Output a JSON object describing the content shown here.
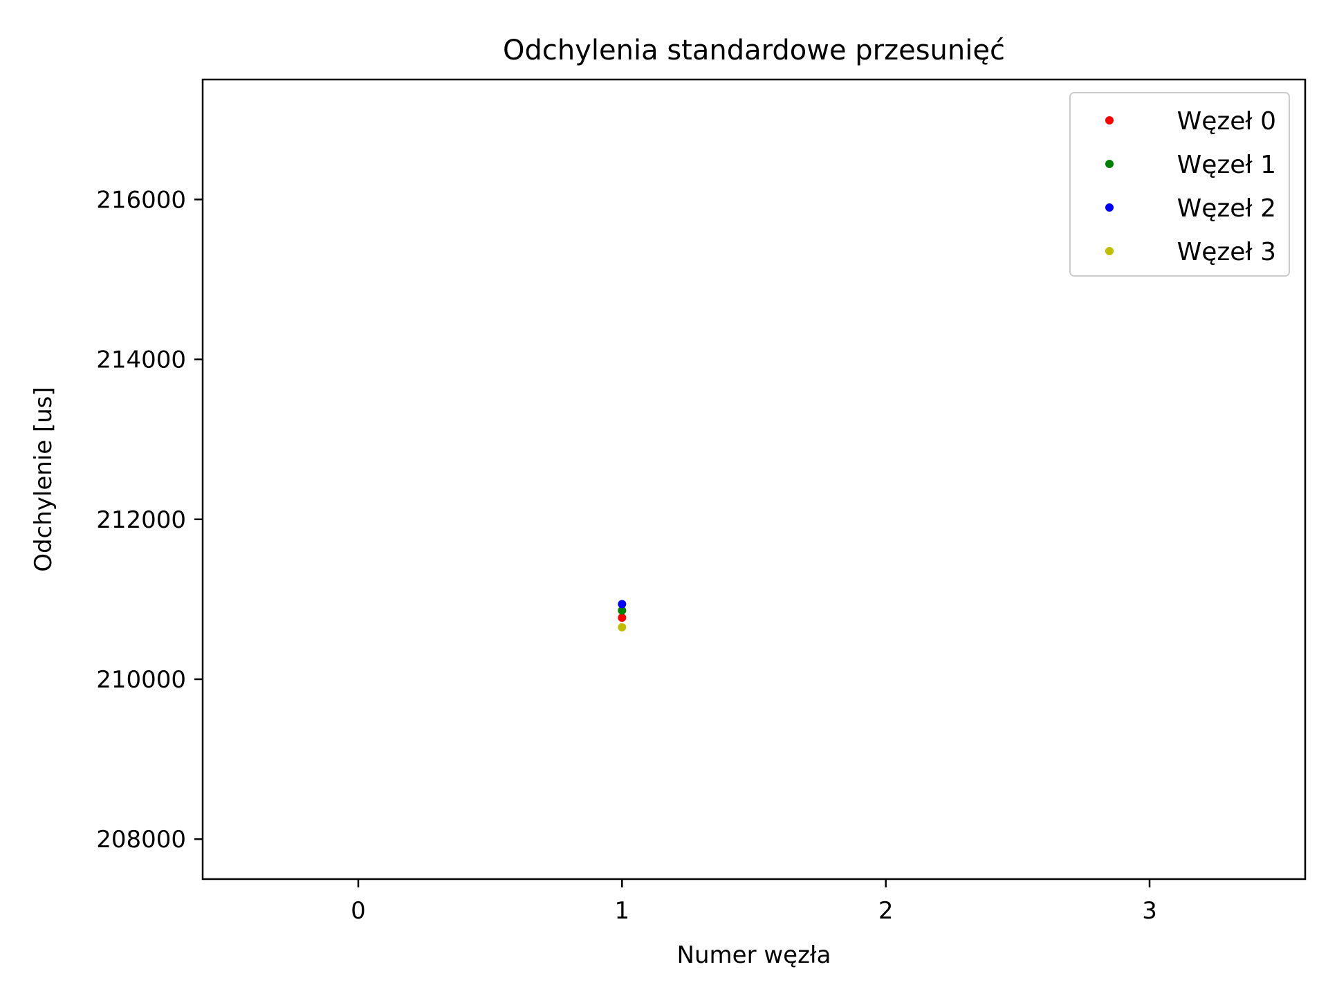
{
  "chart_data": {
    "type": "scatter",
    "title": "Odchylenia standardowe przesunięć",
    "xlabel": "Numer węzła",
    "ylabel": "Odchylenie [us]",
    "xlim": [
      -0.59,
      3.59
    ],
    "ylim": [
      207500,
      217500
    ],
    "xticks": [
      {
        "value": 0,
        "label": "0"
      },
      {
        "value": 1,
        "label": "1"
      },
      {
        "value": 2,
        "label": "2"
      },
      {
        "value": 3,
        "label": "3"
      }
    ],
    "yticks": [
      {
        "value": 208000,
        "label": "208000"
      },
      {
        "value": 210000,
        "label": "210000"
      },
      {
        "value": 212000,
        "label": "212000"
      },
      {
        "value": 214000,
        "label": "214000"
      },
      {
        "value": 216000,
        "label": "216000"
      }
    ],
    "grid": false,
    "legend_position": "top-right",
    "series": [
      {
        "name": "Węzeł 0",
        "color": "#ff0000",
        "points": [
          {
            "x": 1,
            "y": 210770
          }
        ]
      },
      {
        "name": "Węzeł 1",
        "color": "#008000",
        "points": [
          {
            "x": 1,
            "y": 210860
          }
        ]
      },
      {
        "name": "Węzeł 2",
        "color": "#0000ff",
        "points": [
          {
            "x": 1,
            "y": 210940
          }
        ]
      },
      {
        "name": "Węzeł 3",
        "color": "#bfbf00",
        "points": [
          {
            "x": 1,
            "y": 210650
          }
        ]
      }
    ]
  }
}
